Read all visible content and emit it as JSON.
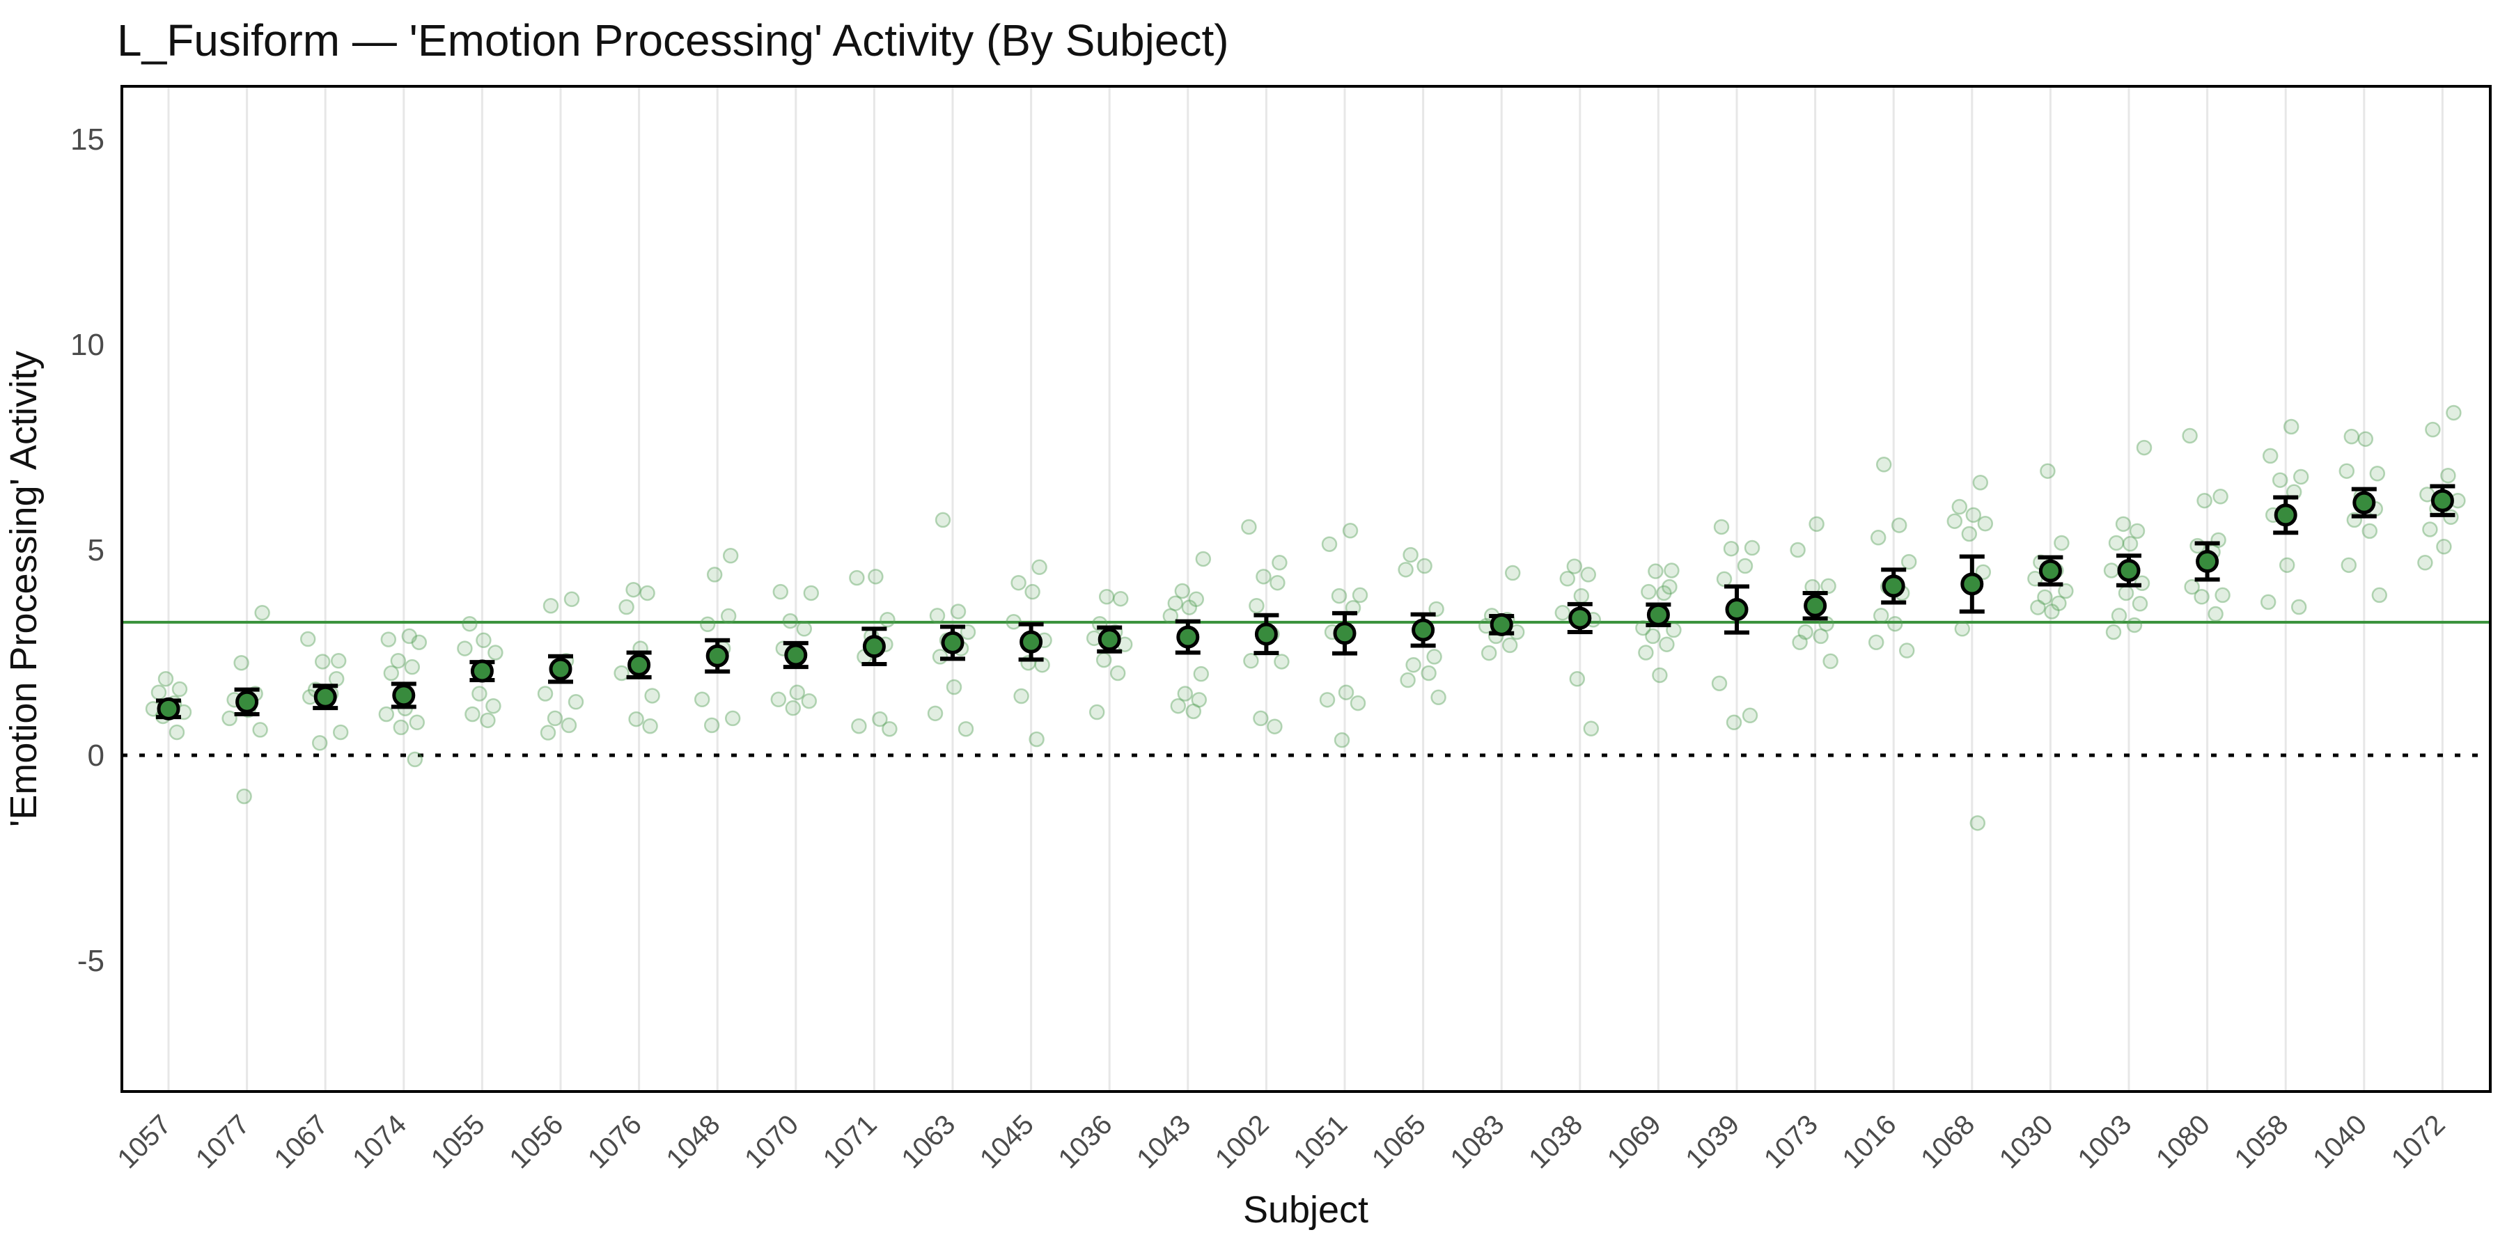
{
  "title": "L_Fusiform — 'Emotion Processing' Activity (By Subject)",
  "axes": {
    "x_label": "Subject",
    "y_label": "'Emotion Processing' Activity",
    "y_ticks": [
      15,
      10,
      5,
      0,
      -5
    ]
  },
  "colors": {
    "mean_point_fill": "#388b3d",
    "mean_point_edge": "#000000",
    "error_bar": "#000000",
    "group_mean_line": "#38913a",
    "jitter_point": "#56a058",
    "gridline": "#e7e7e7",
    "panel_border": "#000000",
    "zero_line": "#000000",
    "tick_text": "#4b4b4b",
    "background": "#ffffff"
  },
  "chart_data": {
    "type": "scatter",
    "title": "L_Fusiform — 'Emotion Processing' Activity (By Subject)",
    "xlabel": "Subject",
    "ylabel": "'Emotion Processing' Activity",
    "ylim": [
      -7.6,
      16.3
    ],
    "yticks": [
      -5,
      0,
      5,
      10,
      15
    ],
    "grid": "vertical-only",
    "legend": "none",
    "reference_lines": [
      {
        "name": "group-mean-line",
        "value": 3.24,
        "style": "solid",
        "color": "#38913a"
      },
      {
        "name": "zero-line",
        "value": 0,
        "style": "dotted",
        "color": "#000000"
      }
    ],
    "series_description": "Per-subject mean activity (green point) with error bars and individual observations (pale jittered points), subjects ordered by ascending mean",
    "subjects": [
      {
        "id": "1057",
        "mean": 1.13,
        "err": 0.2,
        "points": [
          1.86,
          1.61,
          1.53,
          1.27,
          1.13,
          1.05,
          0.95,
          0.56
        ]
      },
      {
        "id": "1077",
        "mean": 1.3,
        "err": 0.3,
        "points": [
          3.47,
          2.25,
          1.5,
          1.35,
          1.1,
          0.9,
          0.62,
          -1.0
        ]
      },
      {
        "id": "1067",
        "mean": 1.42,
        "err": 0.27,
        "points": [
          2.83,
          2.3,
          2.28,
          1.86,
          1.6,
          1.5,
          1.42,
          0.56,
          0.3
        ]
      },
      {
        "id": "1074",
        "mean": 1.46,
        "err": 0.28,
        "points": [
          2.9,
          2.82,
          2.75,
          2.3,
          2.15,
          2.0,
          1.14,
          1.0,
          0.8,
          0.68,
          -0.1
        ]
      },
      {
        "id": "1055",
        "mean": 2.05,
        "err": 0.22,
        "points": [
          3.2,
          2.8,
          2.6,
          2.5,
          1.5,
          1.2,
          1.0,
          0.85
        ]
      },
      {
        "id": "1056",
        "mean": 2.1,
        "err": 0.31,
        "points": [
          3.8,
          3.64,
          2.3,
          1.5,
          1.3,
          0.9,
          0.73,
          0.55
        ]
      },
      {
        "id": "1076",
        "mean": 2.2,
        "err": 0.3,
        "points": [
          4.03,
          3.95,
          3.61,
          2.6,
          2.0,
          1.45,
          0.88,
          0.71
        ]
      },
      {
        "id": "1048",
        "mean": 2.42,
        "err": 0.38,
        "points": [
          4.86,
          4.4,
          3.39,
          3.19,
          2.6,
          1.36,
          0.9,
          0.73
        ]
      },
      {
        "id": "1070",
        "mean": 2.44,
        "err": 0.29,
        "points": [
          3.98,
          3.95,
          3.27,
          3.08,
          2.6,
          1.53,
          1.36,
          1.32,
          1.15
        ]
      },
      {
        "id": "1071",
        "mean": 2.65,
        "err": 0.43,
        "points": [
          4.35,
          4.32,
          3.3,
          2.9,
          2.7,
          2.4,
          0.88,
          0.71,
          0.64
        ]
      },
      {
        "id": "1063",
        "mean": 2.74,
        "err": 0.39,
        "points": [
          5.73,
          3.5,
          3.4,
          3.0,
          2.8,
          2.6,
          2.4,
          1.66,
          1.02,
          0.64
        ]
      },
      {
        "id": "1045",
        "mean": 2.76,
        "err": 0.43,
        "points": [
          4.58,
          4.2,
          3.98,
          3.25,
          2.8,
          2.25,
          2.2,
          1.44,
          0.39
        ]
      },
      {
        "id": "1036",
        "mean": 2.82,
        "err": 0.29,
        "points": [
          3.86,
          3.81,
          3.2,
          3.0,
          2.85,
          2.7,
          2.32,
          2.0,
          1.05
        ]
      },
      {
        "id": "1043",
        "mean": 2.88,
        "err": 0.38,
        "points": [
          4.78,
          4.0,
          3.8,
          3.7,
          3.6,
          3.39,
          1.98,
          1.5,
          1.35,
          1.2,
          1.07
        ]
      },
      {
        "id": "1002",
        "mean": 2.95,
        "err": 0.46,
        "points": [
          5.56,
          4.69,
          4.35,
          4.2,
          3.64,
          2.95,
          2.3,
          2.28,
          0.9,
          0.7
        ]
      },
      {
        "id": "1051",
        "mean": 2.97,
        "err": 0.49,
        "points": [
          5.47,
          5.14,
          3.9,
          3.88,
          3.59,
          3.0,
          1.53,
          1.35,
          1.27,
          0.37
        ]
      },
      {
        "id": "1065",
        "mean": 3.05,
        "err": 0.38,
        "points": [
          4.88,
          4.61,
          4.52,
          3.56,
          3.05,
          2.4,
          2.2,
          2.0,
          1.83,
          1.41
        ]
      },
      {
        "id": "1083",
        "mean": 3.18,
        "err": 0.21,
        "points": [
          4.44,
          3.4,
          3.3,
          3.15,
          3.0,
          2.9,
          2.68,
          2.49
        ]
      },
      {
        "id": "1038",
        "mean": 3.34,
        "err": 0.34,
        "points": [
          4.6,
          4.4,
          4.3,
          3.88,
          3.47,
          3.3,
          1.86,
          0.65
        ]
      },
      {
        "id": "1069",
        "mean": 3.42,
        "err": 0.25,
        "points": [
          4.5,
          4.48,
          4.1,
          3.98,
          3.95,
          3.1,
          3.05,
          2.9,
          2.7,
          2.5,
          1.95
        ]
      },
      {
        "id": "1039",
        "mean": 3.55,
        "err": 0.56,
        "points": [
          5.56,
          5.05,
          5.03,
          4.61,
          4.29,
          3.5,
          1.75,
          0.97,
          0.8
        ]
      },
      {
        "id": "1073",
        "mean": 3.64,
        "err": 0.31,
        "points": [
          5.63,
          5.0,
          4.12,
          4.1,
          3.2,
          3.0,
          2.9,
          2.75,
          2.29
        ]
      },
      {
        "id": "1016",
        "mean": 4.12,
        "err": 0.4,
        "points": [
          7.08,
          5.6,
          5.3,
          4.71,
          4.1,
          3.95,
          3.4,
          3.2,
          2.75,
          2.55
        ]
      },
      {
        "id": "1068",
        "mean": 4.17,
        "err": 0.67,
        "points": [
          6.64,
          6.05,
          5.85,
          5.7,
          5.64,
          5.39,
          4.46,
          3.08,
          -1.65
        ]
      },
      {
        "id": "1030",
        "mean": 4.49,
        "err": 0.33,
        "points": [
          6.92,
          5.17,
          4.7,
          4.5,
          4.3,
          4.0,
          3.85,
          3.7,
          3.6,
          3.5
        ]
      },
      {
        "id": "1003",
        "mean": 4.5,
        "err": 0.36,
        "points": [
          7.49,
          5.63,
          5.46,
          5.17,
          5.15,
          4.5,
          4.19,
          3.95,
          3.69,
          3.4,
          3.17,
          3.0
        ]
      },
      {
        "id": "1080",
        "mean": 4.72,
        "err": 0.44,
        "points": [
          7.78,
          6.3,
          6.2,
          5.24,
          5.1,
          4.95,
          4.1,
          3.9,
          3.86,
          3.44
        ]
      },
      {
        "id": "1058",
        "mean": 5.85,
        "err": 0.43,
        "points": [
          8.0,
          7.29,
          6.78,
          6.7,
          6.41,
          5.85,
          4.63,
          3.73,
          3.61
        ]
      },
      {
        "id": "1040",
        "mean": 6.15,
        "err": 0.33,
        "points": [
          7.76,
          7.7,
          6.92,
          6.86,
          6.31,
          6.0,
          5.73,
          5.46,
          4.63,
          3.9
        ]
      },
      {
        "id": "1072",
        "mean": 6.2,
        "err": 0.35,
        "points": [
          8.34,
          7.93,
          6.81,
          6.35,
          6.2,
          6.0,
          5.8,
          5.5,
          5.08,
          4.69
        ]
      }
    ]
  }
}
